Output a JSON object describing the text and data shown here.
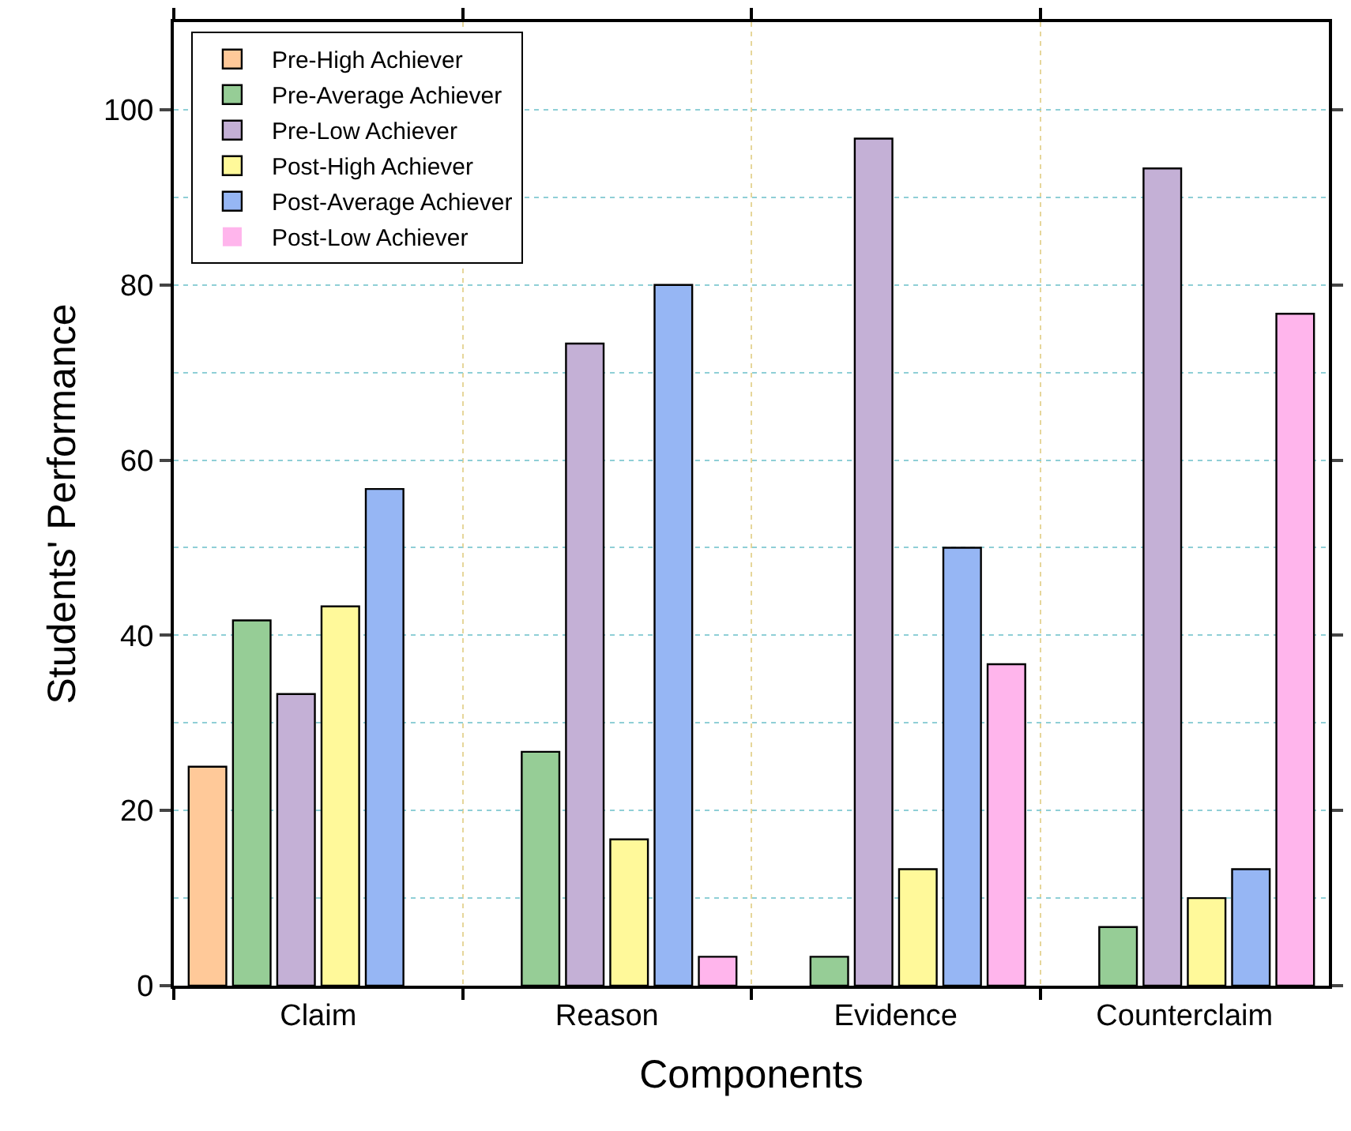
{
  "chart_data": {
    "type": "bar",
    "xlabel": "Components",
    "ylabel": "Students' Performance",
    "categories": [
      "Claim",
      "Reason",
      "Evidence",
      "Counterclaim"
    ],
    "series": [
      {
        "name": "Pre-High Achiever",
        "color": "#ffc999",
        "values": [
          25,
          0,
          0,
          0
        ]
      },
      {
        "name": "Pre-Average Achiever",
        "color": "#96cd96",
        "values": [
          41.7,
          26.7,
          3.3,
          6.7
        ]
      },
      {
        "name": "Pre-Low Achiever",
        "color": "#c4b0d6",
        "values": [
          33.3,
          73.3,
          96.7,
          93.3
        ]
      },
      {
        "name": "Post-High Achiever",
        "color": "#fff99a",
        "values": [
          43.3,
          16.7,
          13.3,
          10
        ]
      },
      {
        "name": "Post-Average Achiever",
        "color": "#96b6f4",
        "values": [
          56.7,
          80,
          50,
          13.3
        ]
      },
      {
        "name": "Post-Low Achiever",
        "color": "#ffb5ec",
        "values": [
          0,
          3.3,
          36.7,
          76.7
        ]
      }
    ],
    "ylim": [
      0,
      110
    ],
    "yticks": [
      0,
      20,
      40,
      60,
      80,
      100
    ],
    "grid": true,
    "legend": "top left"
  }
}
